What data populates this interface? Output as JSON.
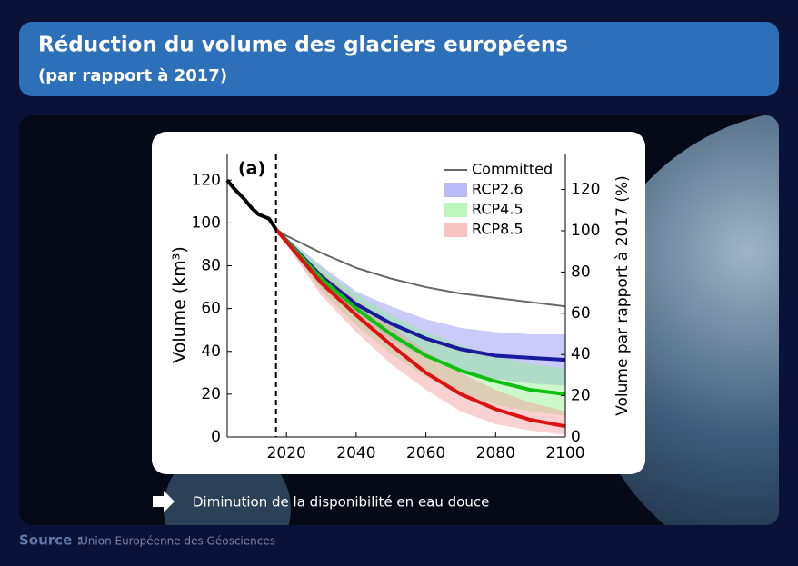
{
  "header": {
    "title": "Réduction du volume des glaciers européens",
    "subtitle": "(par rapport à 2017)"
  },
  "caption": "Diminution de la disponibilité en eau douce",
  "source": {
    "label": "Source :",
    "text": "Union Européenne des Géosciences"
  },
  "chart_data": {
    "type": "line",
    "annotation": "(a)",
    "y_label": "Volume (km³)",
    "y2_label": "Volume par rapport à 2017  (%)",
    "xlim": [
      2003,
      2100
    ],
    "xticks": [
      2020,
      2040,
      2060,
      2080,
      2100
    ],
    "ylim": [
      0,
      132
    ],
    "yticks": [
      0,
      20,
      40,
      60,
      80,
      100,
      120
    ],
    "y2lim": [
      0,
      137
    ],
    "y2ticks": [
      0,
      20,
      40,
      60,
      80,
      100,
      120
    ],
    "vline": 2017,
    "series": [
      {
        "color": "#000000",
        "x": [
          2003,
          2005,
          2008,
          2010,
          2012,
          2015,
          2017
        ],
        "values": [
          120,
          116,
          111,
          107,
          104,
          102,
          97
        ]
      },
      {
        "name": "Committed",
        "color": "#666666",
        "x": [
          2017,
          2020,
          2030,
          2040,
          2050,
          2060,
          2070,
          2080,
          2090,
          2100
        ],
        "values": [
          97,
          94,
          86,
          79,
          74,
          70,
          67,
          65,
          63,
          61
        ]
      },
      {
        "name": "RCP2.6",
        "color": "#1a1a9c",
        "band_color": "#8c8cf5",
        "x": [
          2017,
          2030,
          2040,
          2050,
          2060,
          2070,
          2080,
          2090,
          2100
        ],
        "values": [
          97,
          75,
          62,
          53,
          46,
          41,
          38,
          37,
          36
        ],
        "lower": [
          97,
          70,
          56,
          45,
          37,
          31,
          27,
          25,
          24
        ],
        "upper": [
          97,
          80,
          68,
          61,
          55,
          51,
          49,
          48,
          48
        ]
      },
      {
        "name": "RCP4.5",
        "color": "#10c010",
        "band_color": "#8ef08e",
        "x": [
          2017,
          2030,
          2040,
          2050,
          2060,
          2070,
          2080,
          2090,
          2100
        ],
        "values": [
          97,
          74,
          60,
          48,
          38,
          31,
          26,
          22,
          20
        ],
        "lower": [
          97,
          68,
          52,
          39,
          28,
          20,
          15,
          12,
          10
        ],
        "upper": [
          97,
          79,
          67,
          57,
          49,
          43,
          38,
          34,
          32
        ]
      },
      {
        "name": "RCP8.5",
        "color": "#dd1111",
        "band_color": "#f59a9a",
        "x": [
          2017,
          2030,
          2040,
          2050,
          2060,
          2070,
          2080,
          2090,
          2100
        ],
        "values": [
          97,
          72,
          57,
          43,
          30,
          20,
          13,
          8,
          5
        ],
        "lower": [
          97,
          66,
          49,
          34,
          22,
          12,
          6,
          3,
          1
        ],
        "upper": [
          97,
          77,
          64,
          52,
          40,
          30,
          22,
          16,
          12
        ]
      }
    ]
  }
}
